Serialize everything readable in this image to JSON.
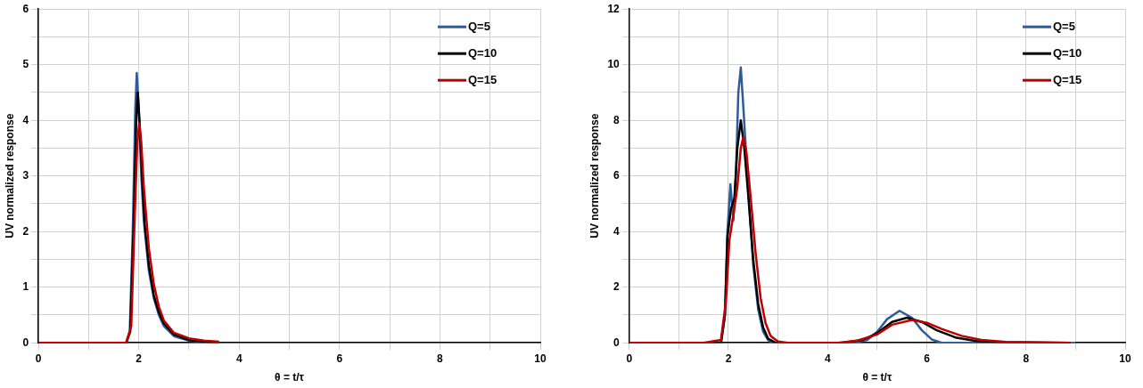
{
  "chart_data": [
    {
      "type": "line",
      "xlabel": "θ = t/τ",
      "ylabel": "UV normalized response",
      "xlim": [
        0,
        10
      ],
      "ylim": [
        0,
        6
      ],
      "xticks": [
        0,
        {
          "value": 1,
          "label": null
        },
        2,
        {
          "value": 3,
          "label": null
        },
        4,
        {
          "value": 5,
          "label": null
        },
        6,
        {
          "value": 7,
          "label": null
        },
        8,
        {
          "value": 9,
          "label": null
        },
        10
      ],
      "yticks": [
        0,
        {
          "value": 0.5,
          "label": null
        },
        1,
        {
          "value": 1.5,
          "label": null
        },
        2,
        {
          "value": 2.5,
          "label": null
        },
        3,
        {
          "value": 3.5,
          "label": null
        },
        4,
        {
          "value": 4.5,
          "label": null
        },
        5,
        {
          "value": 5.5,
          "label": null
        },
        6
      ],
      "grid": true,
      "legend": "top right",
      "line_style": "solid",
      "series": [
        {
          "name": "Q=5",
          "color": "#2e5c9a",
          "x": [
            0,
            1.75,
            1.82,
            1.88,
            1.93,
            1.96,
            2.0,
            2.05,
            2.1,
            2.2,
            2.3,
            2.4,
            2.5,
            2.7,
            3.0,
            3.3,
            3.6
          ],
          "values": [
            0,
            0,
            0.2,
            2,
            4.2,
            4.85,
            4.2,
            3,
            2.2,
            1.3,
            0.8,
            0.5,
            0.3,
            0.12,
            0.04,
            0.02,
            0
          ]
        },
        {
          "name": "Q=10",
          "color": "#000000",
          "x": [
            0,
            1.75,
            1.83,
            1.9,
            1.95,
            1.98,
            2.02,
            2.07,
            2.12,
            2.2,
            2.3,
            2.4,
            2.5,
            2.7,
            3.0,
            3.3,
            3.6
          ],
          "values": [
            0,
            0,
            0.2,
            2.2,
            4.0,
            4.5,
            3.9,
            2.9,
            2.1,
            1.4,
            0.85,
            0.55,
            0.35,
            0.15,
            0.05,
            0.02,
            0
          ]
        },
        {
          "name": "Q=15",
          "color": "#c00000",
          "x": [
            0,
            1.75,
            1.85,
            1.92,
            1.97,
            2.01,
            2.05,
            2.1,
            2.2,
            2.3,
            2.4,
            2.5,
            2.7,
            3.0,
            3.3,
            3.6
          ],
          "values": [
            0,
            0,
            0.3,
            2.3,
            3.6,
            3.95,
            3.6,
            2.8,
            1.7,
            1.05,
            0.65,
            0.4,
            0.18,
            0.08,
            0.04,
            0.02
          ]
        }
      ]
    },
    {
      "type": "line",
      "xlabel": "θ = t/τ",
      "ylabel": "UV normalized response",
      "xlim": [
        0,
        10
      ],
      "ylim": [
        0,
        12
      ],
      "xticks": [
        0,
        {
          "value": 1,
          "label": null
        },
        2,
        {
          "value": 3,
          "label": null
        },
        4,
        {
          "value": 5,
          "label": null
        },
        6,
        {
          "value": 7,
          "label": null
        },
        8,
        {
          "value": 9,
          "label": null
        },
        10
      ],
      "yticks": [
        0,
        {
          "value": 1,
          "label": null
        },
        2,
        {
          "value": 3,
          "label": null
        },
        4,
        {
          "value": 5,
          "label": null
        },
        6,
        {
          "value": 7,
          "label": null
        },
        8,
        {
          "value": 9,
          "label": null
        },
        10,
        {
          "value": 11,
          "label": null
        },
        12
      ],
      "grid": true,
      "legend": "top right",
      "line_style": "solid",
      "series": [
        {
          "name": "Q=5",
          "color": "#2e5c9a",
          "x": [
            0,
            1.85,
            1.93,
            1.98,
            2.04,
            2.1,
            2.15,
            2.2,
            2.25,
            2.3,
            2.4,
            2.5,
            2.6,
            2.7,
            2.8,
            2.9,
            4.5,
            4.8,
            5.0,
            5.2,
            5.45,
            5.7,
            5.9,
            6.1,
            6.3,
            9
          ],
          "values": [
            0,
            0,
            1,
            4,
            5.7,
            4.4,
            6,
            9,
            9.9,
            8.5,
            5.5,
            2.8,
            1.2,
            0.4,
            0.1,
            0,
            0,
            0.1,
            0.4,
            0.85,
            1.15,
            0.9,
            0.45,
            0.12,
            0,
            0
          ]
        },
        {
          "name": "Q=10",
          "color": "#000000",
          "x": [
            0,
            1.85,
            1.93,
            1.98,
            2.05,
            2.12,
            2.18,
            2.25,
            2.32,
            2.4,
            2.5,
            2.6,
            2.7,
            2.8,
            2.95,
            4.3,
            4.7,
            5.0,
            5.3,
            5.6,
            5.9,
            6.2,
            6.6,
            7.0,
            7.5,
            8.9
          ],
          "values": [
            0,
            0,
            1,
            3.8,
            4.8,
            5.2,
            7,
            8.0,
            7,
            5.3,
            3.0,
            1.4,
            0.55,
            0.15,
            0,
            0,
            0.1,
            0.35,
            0.75,
            0.9,
            0.75,
            0.45,
            0.18,
            0.06,
            0.02,
            0
          ]
        },
        {
          "name": "Q=15",
          "color": "#c00000",
          "x": [
            0,
            1.5,
            1.85,
            1.95,
            2.02,
            2.1,
            2.18,
            2.25,
            2.3,
            2.36,
            2.45,
            2.55,
            2.65,
            2.75,
            2.85,
            3.0,
            3.2,
            4.2,
            4.6,
            5.0,
            5.3,
            5.7,
            6.0,
            6.3,
            6.7,
            7.1,
            7.6,
            8.9
          ],
          "values": [
            0,
            0,
            0.1,
            1.5,
            3.7,
            4.6,
            5.6,
            7.0,
            7.4,
            6.9,
            5.2,
            3.2,
            1.6,
            0.7,
            0.25,
            0.05,
            0,
            0,
            0.08,
            0.3,
            0.65,
            0.82,
            0.72,
            0.5,
            0.25,
            0.1,
            0.03,
            0
          ]
        }
      ]
    }
  ]
}
